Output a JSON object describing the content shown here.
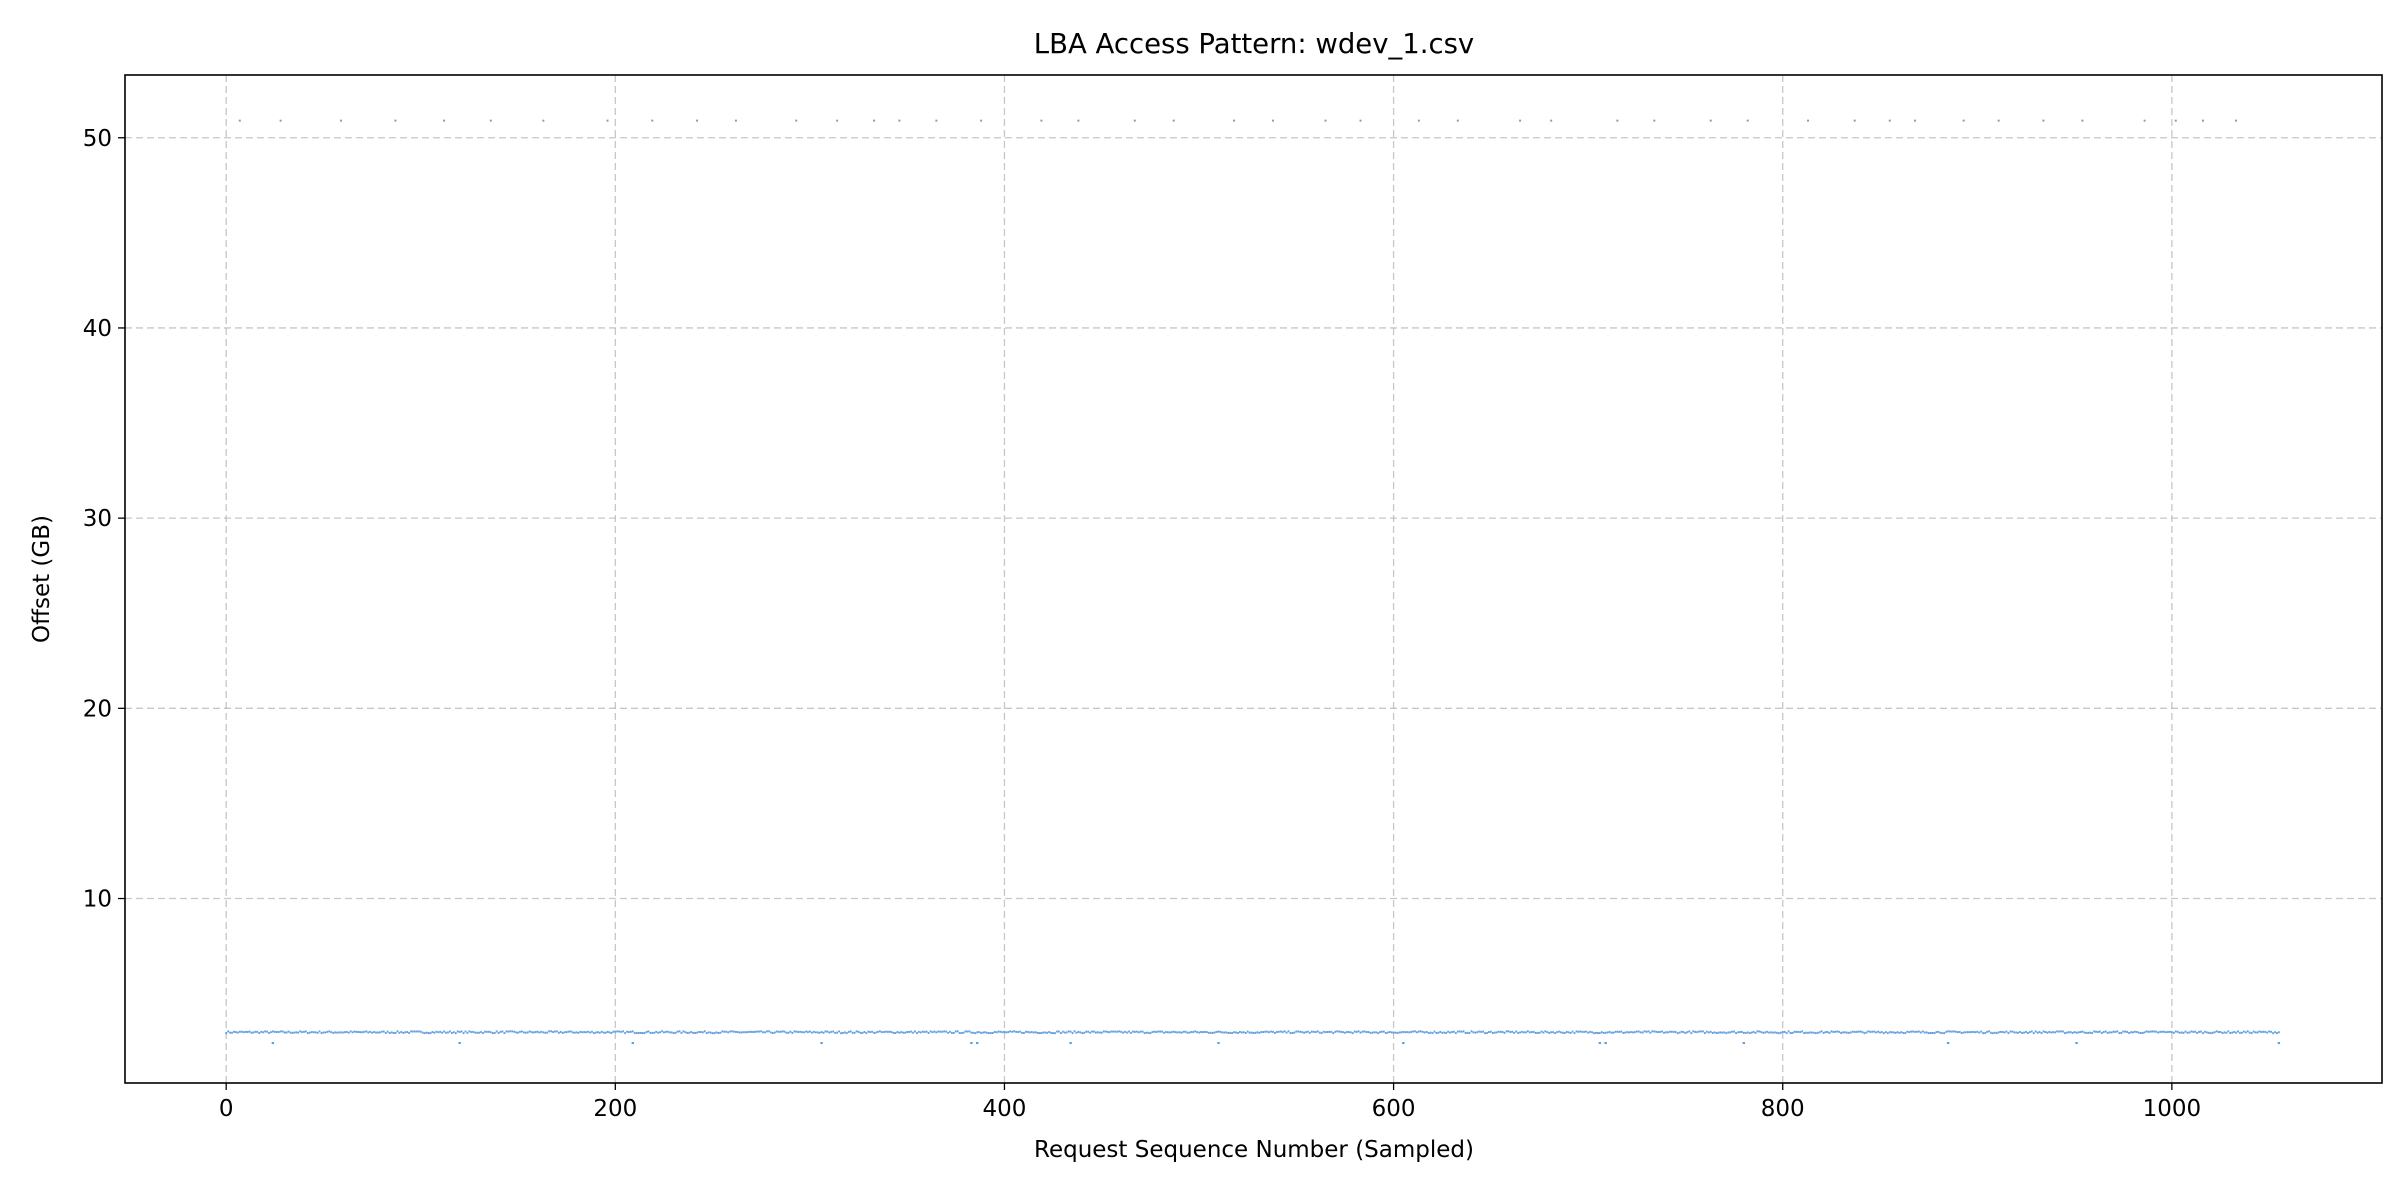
{
  "chart_data": {
    "type": "scatter",
    "title": "LBA Access Pattern: wdev_1.csv",
    "xlabel": "Request Sequence Number (Sampled)",
    "ylabel": "Offset (GB)",
    "xlim": [
      -52,
      1108
    ],
    "ylim": [
      0.3,
      53.3
    ],
    "xticks": [
      0,
      200,
      400,
      600,
      800,
      1000
    ],
    "yticks": [
      10,
      20,
      30,
      40,
      50
    ],
    "grid": true,
    "color": "#4a90d9",
    "outlier_color": "#9a9a9a",
    "n_points": 1055,
    "baseline_band": {
      "x_start": 0,
      "x_end": 1055,
      "y_center": 2.97,
      "y_jitter": 0.05
    },
    "low_points": {
      "x": [
        24,
        120,
        209,
        306,
        383,
        386,
        434,
        510,
        605,
        706,
        709,
        780,
        885,
        951,
        1055
      ],
      "y": [
        2.4,
        2.4,
        2.4,
        2.4,
        2.4,
        2.4,
        2.4,
        2.4,
        2.4,
        2.4,
        2.4,
        2.4,
        2.4,
        2.4,
        2.4
      ]
    },
    "high_points": {
      "x": [
        7,
        28,
        59,
        87,
        112,
        136,
        163,
        196,
        219,
        242,
        262,
        293,
        314,
        333,
        346,
        365,
        388,
        419,
        438,
        467,
        487,
        518,
        538,
        565,
        583,
        613,
        633,
        665,
        681,
        715,
        734,
        763,
        782,
        813,
        837,
        855,
        868,
        893,
        911,
        934,
        954,
        986,
        1002,
        1016,
        1033
      ],
      "y": [
        50.9,
        50.9,
        50.9,
        50.9,
        50.9,
        50.9,
        50.9,
        50.9,
        50.9,
        50.9,
        50.9,
        50.9,
        50.9,
        50.9,
        50.9,
        50.9,
        50.9,
        50.9,
        50.9,
        50.9,
        50.9,
        50.9,
        50.9,
        50.9,
        50.9,
        50.9,
        50.9,
        50.9,
        50.9,
        50.9,
        50.9,
        50.9,
        50.9,
        50.9,
        50.9,
        50.9,
        50.9,
        50.9,
        50.9,
        50.9,
        50.9,
        50.9,
        50.9,
        50.9,
        50.9
      ]
    }
  }
}
